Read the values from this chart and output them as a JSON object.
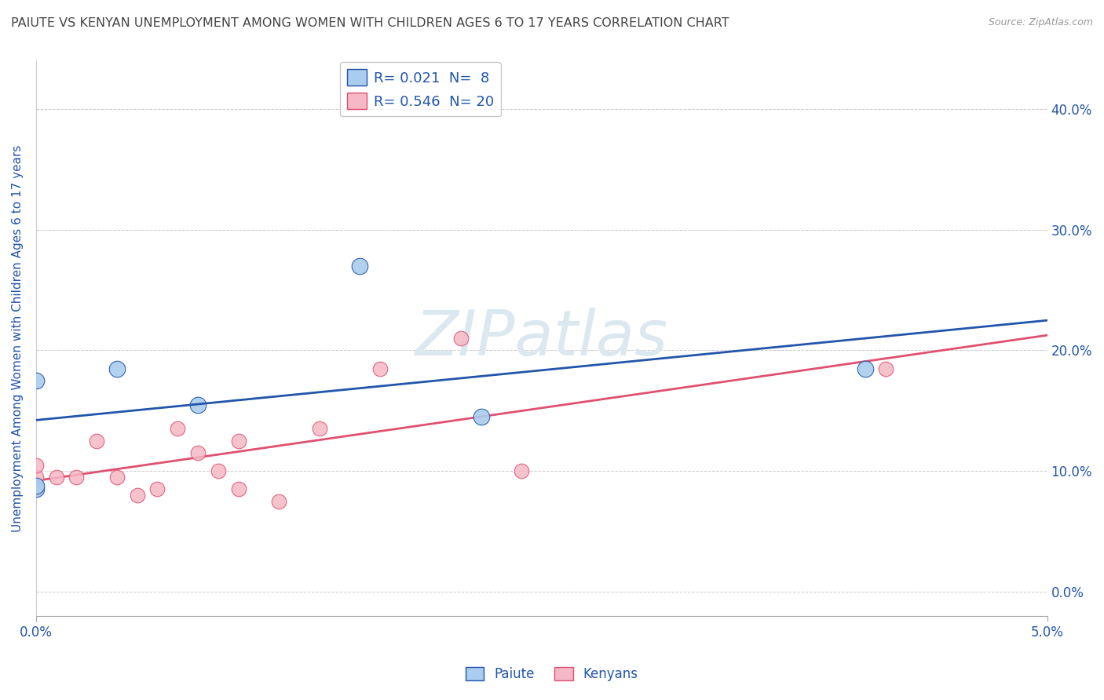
{
  "title": "PAIUTE VS KENYAN UNEMPLOYMENT AMONG WOMEN WITH CHILDREN AGES 6 TO 17 YEARS CORRELATION CHART",
  "source": "Source: ZipAtlas.com",
  "ylabel": "Unemployment Among Women with Children Ages 6 to 17 years",
  "xlim": [
    0.0,
    0.05
  ],
  "ylim": [
    -0.02,
    0.44
  ],
  "yticks": [
    0.0,
    0.1,
    0.2,
    0.3,
    0.4
  ],
  "ytick_labels": [
    "0.0%",
    "10.0%",
    "20.0%",
    "30.0%",
    "40.0%"
  ],
  "xticks": [
    0.0,
    0.05
  ],
  "xtick_labels": [
    "0.0%",
    "5.0%"
  ],
  "paiute_x": [
    0.0,
    0.0,
    0.0,
    0.004,
    0.008,
    0.016,
    0.022,
    0.041
  ],
  "paiute_y": [
    0.085,
    0.088,
    0.175,
    0.185,
    0.155,
    0.27,
    0.145,
    0.185
  ],
  "kenyan_x": [
    0.0,
    0.0,
    0.0,
    0.001,
    0.002,
    0.003,
    0.004,
    0.005,
    0.006,
    0.007,
    0.008,
    0.009,
    0.01,
    0.01,
    0.012,
    0.014,
    0.017,
    0.021,
    0.024,
    0.042
  ],
  "kenyan_y": [
    0.085,
    0.095,
    0.105,
    0.095,
    0.095,
    0.125,
    0.095,
    0.08,
    0.085,
    0.135,
    0.115,
    0.1,
    0.125,
    0.085,
    0.075,
    0.135,
    0.185,
    0.21,
    0.1,
    0.185
  ],
  "paiute_color": "#aaccee",
  "kenyan_color": "#f5b8c4",
  "paiute_line_color": "#2255aa",
  "kenyan_line_color": "#e05070",
  "paiute_R": 0.021,
  "paiute_N": 8,
  "kenyan_R": 0.546,
  "kenyan_N": 20,
  "legend_label_paiute": "Paiute",
  "legend_label_kenyan": "Kenyans",
  "background_color": "#ffffff",
  "grid_color": "#cccccc",
  "title_color": "#444444",
  "axis_label_color": "#2255aa",
  "tick_color": "#2255aa",
  "watermark_text": "ZIPatlas",
  "watermark_color": "#dce8f0"
}
